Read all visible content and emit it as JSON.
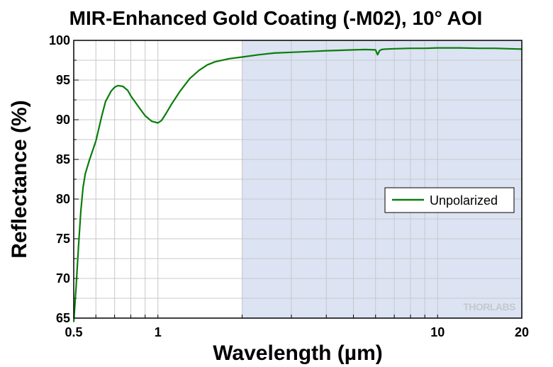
{
  "chart_data": {
    "type": "line",
    "title": "MIR-Enhanced Gold Coating (-M02), 10° AOI",
    "xlabel": "Wavelength (µm)",
    "ylabel": "Reflectance (%)",
    "x_scale": "log",
    "xlim": [
      0.5,
      20
    ],
    "ylim": [
      65,
      100
    ],
    "x_ticks": [
      {
        "value": 0.5,
        "label": "0.5"
      },
      {
        "value": 1,
        "label": "1"
      },
      {
        "value": 10,
        "label": "10"
      },
      {
        "value": 20,
        "label": "20"
      }
    ],
    "y_ticks": [
      {
        "value": 65,
        "label": "65"
      },
      {
        "value": 70,
        "label": "70"
      },
      {
        "value": 75,
        "label": "75"
      },
      {
        "value": 80,
        "label": "80"
      },
      {
        "value": 85,
        "label": "85"
      },
      {
        "value": 90,
        "label": "90"
      },
      {
        "value": 95,
        "label": "95"
      },
      {
        "value": 100,
        "label": "100"
      }
    ],
    "shaded_region": {
      "x_start": 2,
      "x_end": 20,
      "color": "#dce3f3"
    },
    "grid": true,
    "legend_position": "right",
    "series": [
      {
        "name": "Unpolarized",
        "color": "#0a7d0a",
        "x": [
          0.5,
          0.51,
          0.52,
          0.53,
          0.54,
          0.55,
          0.57,
          0.6,
          0.63,
          0.65,
          0.68,
          0.7,
          0.72,
          0.75,
          0.78,
          0.8,
          0.85,
          0.9,
          0.95,
          1.0,
          1.03,
          1.07,
          1.12,
          1.2,
          1.3,
          1.4,
          1.5,
          1.6,
          1.8,
          2.0,
          2.3,
          2.6,
          3.0,
          3.5,
          4.0,
          4.5,
          5.0,
          5.5,
          6.0,
          6.1,
          6.2,
          6.3,
          6.5,
          7.0,
          8.0,
          9.0,
          10.0,
          12.0,
          14.0,
          16.0,
          18.0,
          20.0
        ],
        "y": [
          64.5,
          69.0,
          74.0,
          78.5,
          81.5,
          83.2,
          85.0,
          87.3,
          90.5,
          92.3,
          93.6,
          94.1,
          94.3,
          94.2,
          93.7,
          93.0,
          91.7,
          90.5,
          89.8,
          89.6,
          89.9,
          90.8,
          92.0,
          93.6,
          95.2,
          96.2,
          96.9,
          97.3,
          97.7,
          97.9,
          98.2,
          98.4,
          98.5,
          98.6,
          98.7,
          98.75,
          98.8,
          98.85,
          98.8,
          98.2,
          98.7,
          98.85,
          98.9,
          98.95,
          99.0,
          99.0,
          99.05,
          99.05,
          99.0,
          99.0,
          98.95,
          98.9
        ]
      }
    ]
  },
  "watermark": "THORLABS"
}
